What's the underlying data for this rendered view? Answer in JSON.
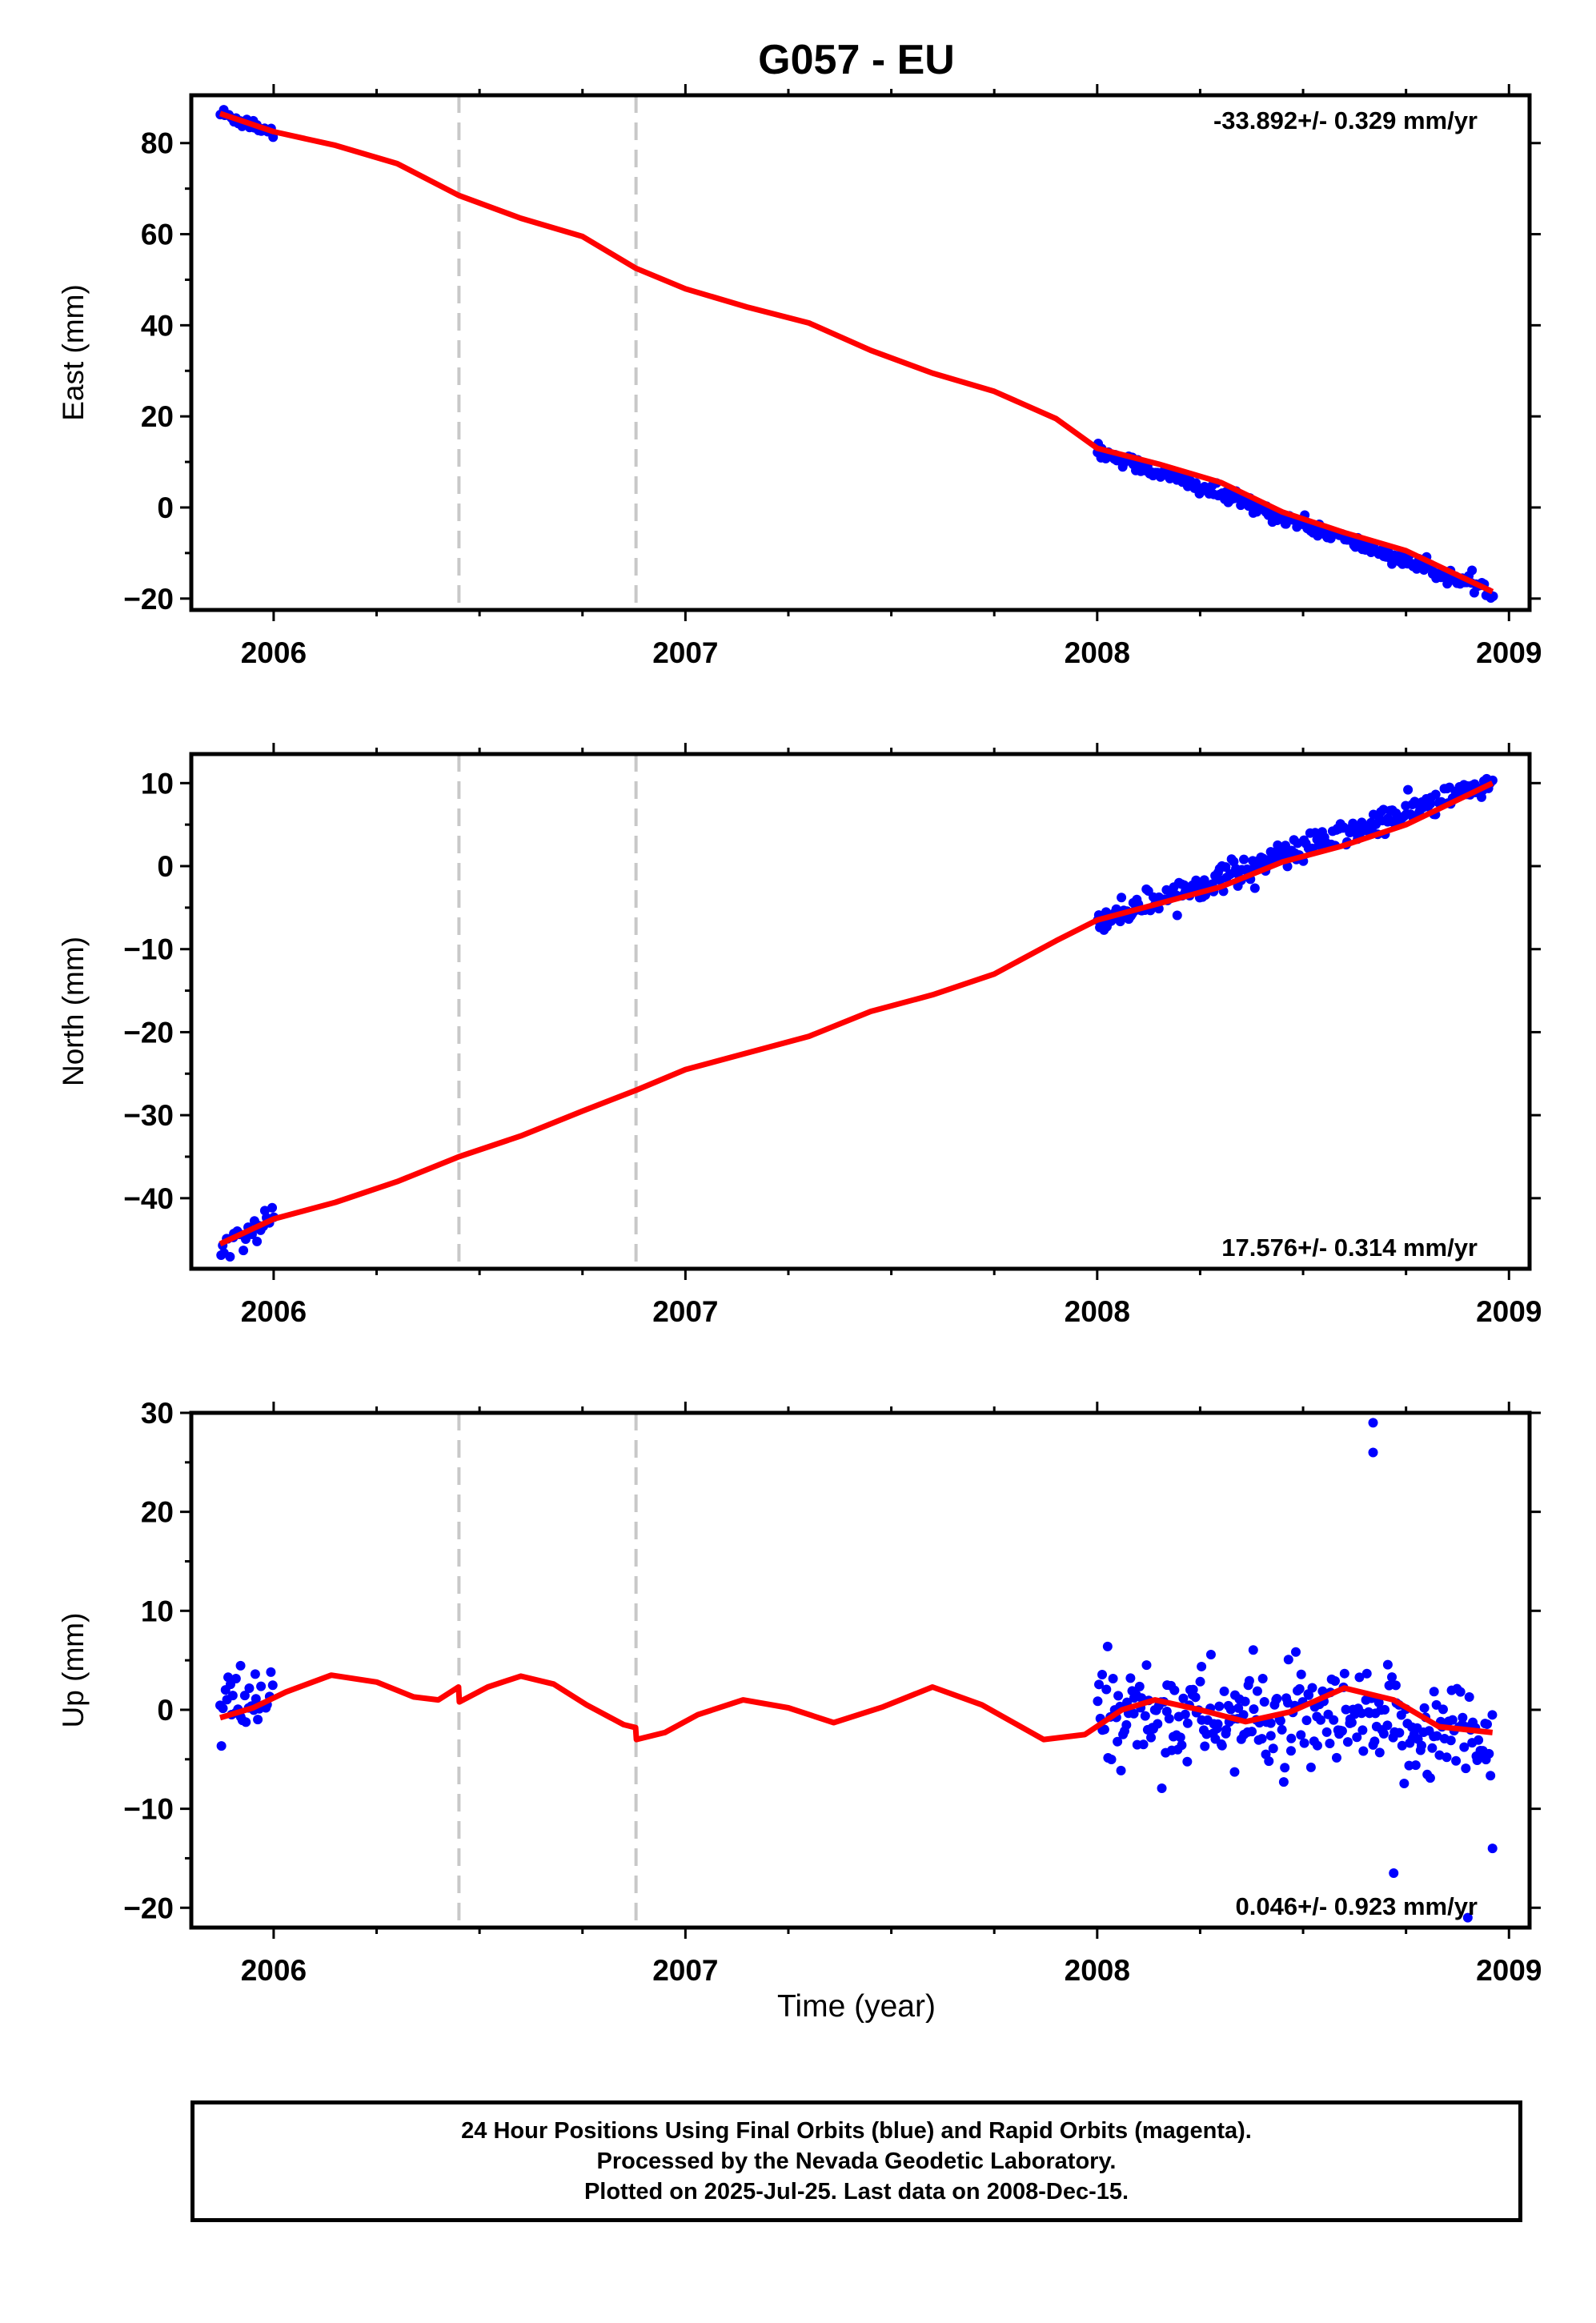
{
  "title": "G057 - EU",
  "xlabel": "Time (year)",
  "footer": {
    "line1": "24 Hour Positions Using Final Orbits (blue) and Rapid Orbits (magenta).",
    "line2": "Processed by the Nevada Geodetic Laboratory.",
    "line3": "Plotted on 2025-Jul-25. Last data on 2008-Dec-15."
  },
  "colors": {
    "data": "#0000ff",
    "model": "#ff0000",
    "breaks": "#c8c8c8",
    "axes": "#000000"
  },
  "chart_data": [
    {
      "type": "scatter",
      "ylabel": "East (mm)",
      "xlim": [
        2005.8,
        2009.05
      ],
      "ylim": [
        -22.5,
        90.5
      ],
      "xticks": [
        2006,
        2007,
        2008,
        2009
      ],
      "xtick_labels": [
        "2006",
        "2007",
        "2008",
        "2009"
      ],
      "yticks": [
        -20,
        0,
        20,
        40,
        60,
        80
      ],
      "ytick_labels": [
        "−20",
        "0",
        "20",
        "40",
        "60",
        "80"
      ],
      "rate_text": "-33.892+/- 0.329 mm/yr",
      "rate_position": "top-right",
      "breaks": [
        2006.45,
        2006.88
      ],
      "grid": false,
      "data_segments": [
        {
          "x_start": 2005.87,
          "x_end": 2006.0,
          "x_step": 0.004,
          "trend_start": 86.5,
          "trend_end": 82.5,
          "noise": 1.4
        },
        {
          "x_start": 2008.0,
          "x_end": 2008.96,
          "x_step": 0.004,
          "trend_start": 12.5,
          "trend_end": -18.5,
          "noise": 1.5
        }
      ],
      "model_line": [
        [
          2005.87,
          86.5
        ],
        [
          2006.0,
          82.5
        ],
        [
          2006.15,
          79.5
        ],
        [
          2006.3,
          75.5
        ],
        [
          2006.45,
          68.5
        ],
        [
          2006.6,
          63.5
        ],
        [
          2006.75,
          59.5
        ],
        [
          2006.88,
          52.5
        ],
        [
          2007.0,
          48.0
        ],
        [
          2007.15,
          44.0
        ],
        [
          2007.3,
          40.5
        ],
        [
          2007.45,
          34.5
        ],
        [
          2007.6,
          29.5
        ],
        [
          2007.75,
          25.5
        ],
        [
          2007.9,
          19.5
        ],
        [
          2008.0,
          13.0
        ],
        [
          2008.15,
          9.5
        ],
        [
          2008.3,
          5.5
        ],
        [
          2008.45,
          -1.0
        ],
        [
          2008.6,
          -5.5
        ],
        [
          2008.75,
          -9.5
        ],
        [
          2008.96,
          -18.5
        ]
      ]
    },
    {
      "type": "scatter",
      "ylabel": "North (mm)",
      "xlim": [
        2005.8,
        2009.05
      ],
      "ylim": [
        -48.5,
        13.5
      ],
      "xticks": [
        2006,
        2007,
        2008,
        2009
      ],
      "xtick_labels": [
        "2006",
        "2007",
        "2008",
        "2009"
      ],
      "yticks": [
        -40,
        -30,
        -20,
        -10,
        0,
        10
      ],
      "ytick_labels": [
        "−40",
        "−30",
        "−20",
        "−10",
        "0",
        "10"
      ],
      "rate_text": "17.576+/- 0.314 mm/yr",
      "rate_position": "bottom-right",
      "breaks": [
        2006.45,
        2006.88
      ],
      "grid": false,
      "data_segments": [
        {
          "x_start": 2005.87,
          "x_end": 2006.0,
          "x_step": 0.005,
          "trend_start": -45.5,
          "trend_end": -42.5,
          "noise": 1.6
        },
        {
          "x_start": 2008.0,
          "x_end": 2008.96,
          "x_step": 0.004,
          "trend_start": -6.5,
          "trend_end": 10.0,
          "noise": 1.5
        }
      ],
      "model_line": [
        [
          2005.87,
          -45.5
        ],
        [
          2006.0,
          -42.5
        ],
        [
          2006.15,
          -40.5
        ],
        [
          2006.3,
          -38.0
        ],
        [
          2006.45,
          -35.0
        ],
        [
          2006.6,
          -32.5
        ],
        [
          2006.75,
          -29.5
        ],
        [
          2006.88,
          -27.0
        ],
        [
          2007.0,
          -24.5
        ],
        [
          2007.15,
          -22.5
        ],
        [
          2007.3,
          -20.5
        ],
        [
          2007.45,
          -17.5
        ],
        [
          2007.6,
          -15.5
        ],
        [
          2007.75,
          -13.0
        ],
        [
          2007.9,
          -9.0
        ],
        [
          2008.0,
          -6.5
        ],
        [
          2008.15,
          -4.5
        ],
        [
          2008.3,
          -2.5
        ],
        [
          2008.45,
          0.5
        ],
        [
          2008.6,
          2.5
        ],
        [
          2008.75,
          5.0
        ],
        [
          2008.96,
          10.0
        ]
      ]
    },
    {
      "type": "scatter",
      "ylabel": "Up (mm)",
      "xlim": [
        2005.8,
        2009.05
      ],
      "ylim": [
        -22,
        30
      ],
      "xticks": [
        2006,
        2007,
        2008,
        2009
      ],
      "xtick_labels": [
        "2006",
        "2007",
        "2008",
        "2009"
      ],
      "yticks": [
        -20,
        -10,
        0,
        10,
        20,
        30
      ],
      "ytick_labels": [
        "−20",
        "−10",
        "0",
        "10",
        "20",
        "30"
      ],
      "rate_text": "0.046+/- 0.923 mm/yr",
      "rate_position": "bottom-right",
      "breaks": [
        2006.45,
        2006.88
      ],
      "grid": false,
      "data_segments": [
        {
          "x_start": 2005.87,
          "x_end": 2006.0,
          "x_step": 0.004,
          "trend_start": 0.0,
          "trend_end": 1.0,
          "noise": 3.5
        },
        {
          "x_start": 2008.0,
          "x_end": 2008.96,
          "x_step": 0.0035,
          "trend_start": 0.0,
          "trend_end": -2.5,
          "noise": 4.8
        }
      ],
      "outliers": [
        [
          2008.67,
          29.0
        ],
        [
          2008.67,
          26.0
        ],
        [
          2008.72,
          -16.5
        ],
        [
          2008.9,
          -21.0
        ],
        [
          2008.96,
          -14.0
        ]
      ],
      "model_line": [
        [
          2005.87,
          -0.8
        ],
        [
          2005.95,
          0.2
        ],
        [
          2006.03,
          1.8
        ],
        [
          2006.14,
          3.5
        ],
        [
          2006.25,
          2.8
        ],
        [
          2006.34,
          1.3
        ],
        [
          2006.4,
          1.0
        ],
        [
          2006.449,
          2.3
        ],
        [
          2006.451,
          0.8
        ],
        [
          2006.52,
          2.3
        ],
        [
          2006.6,
          3.4
        ],
        [
          2006.68,
          2.6
        ],
        [
          2006.76,
          0.5
        ],
        [
          2006.85,
          -1.5
        ],
        [
          2006.879,
          -1.8
        ],
        [
          2006.881,
          -3.0
        ],
        [
          2006.95,
          -2.3
        ],
        [
          2007.03,
          -0.5
        ],
        [
          2007.14,
          1.0
        ],
        [
          2007.25,
          0.2
        ],
        [
          2007.36,
          -1.3
        ],
        [
          2007.48,
          0.3
        ],
        [
          2007.6,
          2.3
        ],
        [
          2007.72,
          0.5
        ],
        [
          2007.87,
          -3.0
        ],
        [
          2007.97,
          -2.5
        ],
        [
          2008.06,
          0.0
        ],
        [
          2008.14,
          1.0
        ],
        [
          2008.25,
          0.0
        ],
        [
          2008.36,
          -1.2
        ],
        [
          2008.47,
          -0.2
        ],
        [
          2008.6,
          2.2
        ],
        [
          2008.72,
          1.0
        ],
        [
          2008.83,
          -1.7
        ],
        [
          2008.96,
          -2.3
        ]
      ]
    }
  ]
}
